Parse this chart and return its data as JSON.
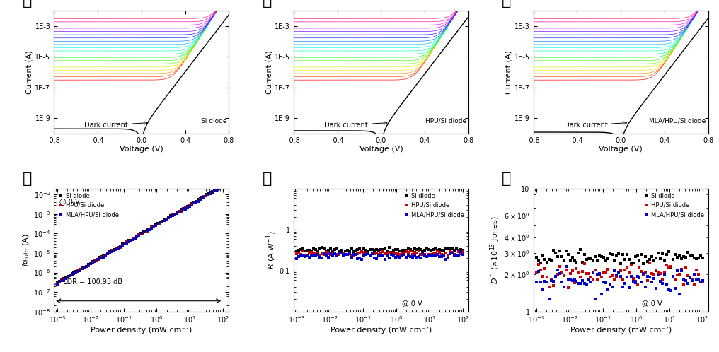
{
  "panel_labels": [
    "가",
    "나",
    "다",
    "라",
    "마",
    "바"
  ],
  "iv_xlim": [
    -0.8,
    0.8
  ],
  "iv_ylim": [
    1e-10,
    0.01
  ],
  "iv_xlabel": "Voltage (V)",
  "iv_ylabel": "Current (A)",
  "iv_yticks": [
    1e-09,
    1e-07,
    1e-05,
    0.001
  ],
  "iv_ytick_labels": [
    "1E-9",
    "1E-7",
    "1E-5",
    "1E-3"
  ],
  "iv_xticks": [
    -0.8,
    -0.4,
    0.0,
    0.4,
    0.8
  ],
  "iv_xtick_labels": [
    "-0.8",
    "-0.4",
    "0.0",
    "0.4",
    "0.8"
  ],
  "diode_labels": [
    "Si diode",
    "HPU/Si diode",
    "MLA/HPU/Si diode"
  ],
  "dark_annotation": "Dark current",
  "n_light_curves": 20,
  "pd_xlim": [
    0.0008,
    150
  ],
  "pd_xlabel": "Power density (mW cm⁻²)",
  "la_ylim": [
    1e-08,
    0.02
  ],
  "la_annotation": "@ 0 V",
  "la_ldr": "LDR = 100.93 dB",
  "ma_ylim": [
    0.01,
    10
  ],
  "ma_annotation": "@ 0 V",
  "da_ylim": [
    1,
    10
  ],
  "da_annotation": "@ 0 V",
  "series_colors": [
    "#000000",
    "#cc0000",
    "#0000cc"
  ],
  "legend_labels": [
    "Si diode",
    "HPU/Si diode",
    "MLA/HPU/Si diode"
  ],
  "background_color": "#ffffff",
  "label_fontsize": 16,
  "axis_fontsize": 8,
  "tick_fontsize": 7,
  "annot_fontsize": 7,
  "legend_fontsize": 6
}
